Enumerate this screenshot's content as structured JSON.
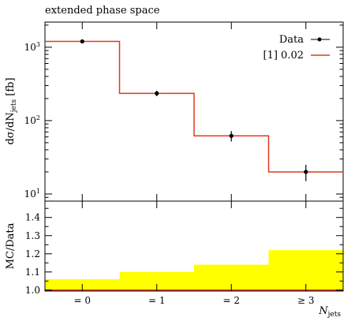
{
  "chart_data": [
    {
      "type": "line",
      "title": "extended phase space",
      "ylabel_main": "dσ/dN",
      "ylabel_sub": "jets",
      "ylabel_unit": " [fb]",
      "yscale": "log",
      "ylim": [
        8,
        2200
      ],
      "yticks": [
        {
          "value": 10,
          "base": "10",
          "exp": "1"
        },
        {
          "value": 100,
          "base": "10",
          "exp": "2"
        },
        {
          "value": 1000,
          "base": "10",
          "exp": "3"
        }
      ],
      "bins": [
        {
          "low": -0.5,
          "high": 0.5
        },
        {
          "low": 0.5,
          "high": 1.5
        },
        {
          "low": 1.5,
          "high": 2.5
        },
        {
          "low": 2.5,
          "high": 3.5
        }
      ],
      "series": [
        {
          "name": "Data",
          "color": "#000000",
          "marker": "point",
          "values": [
            1200,
            235,
            62,
            20
          ],
          "err_low": [
            1150,
            215,
            52,
            15
          ],
          "err_high": [
            1250,
            255,
            72,
            25
          ]
        },
        {
          "name": "[1] 0.02",
          "color": "#e03a1e",
          "style": "step",
          "values": [
            1200,
            235,
            62,
            20
          ]
        }
      ],
      "legend": "top-right"
    },
    {
      "type": "area",
      "ylabel": "MC/Data",
      "ylim": [
        0.995,
        1.49
      ],
      "yticks": [
        "1.0",
        "1.1",
        "1.2",
        "1.3",
        "1.4"
      ],
      "band_color": "#ffff00",
      "ratio_line_color": "#e03a1e",
      "ratio": [
        1.0,
        1.0,
        1.0,
        1.0
      ],
      "band_high": [
        1.06,
        1.1,
        1.14,
        1.22
      ],
      "xlabel_main": "N",
      "xlabel_sub": "jets",
      "xticks": [
        "= 0",
        "= 1",
        "= 2",
        "≥ 3"
      ]
    }
  ]
}
